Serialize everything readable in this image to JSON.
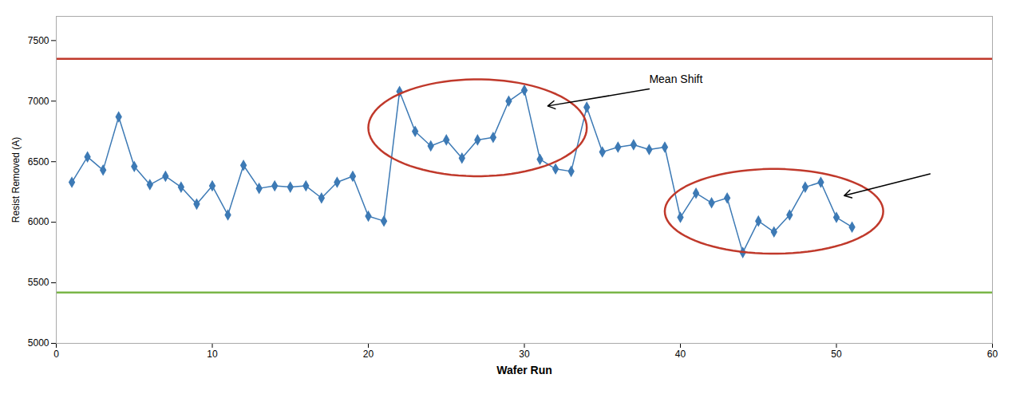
{
  "chart_data": {
    "type": "line",
    "x": [
      1,
      2,
      3,
      4,
      5,
      6,
      7,
      8,
      9,
      10,
      11,
      12,
      13,
      14,
      15,
      16,
      17,
      18,
      19,
      20,
      21,
      22,
      23,
      24,
      25,
      26,
      27,
      28,
      29,
      30,
      31,
      32,
      33,
      34,
      35,
      36,
      37,
      38,
      39,
      40,
      41,
      42,
      43,
      44,
      45,
      46,
      47,
      48,
      49,
      50,
      51
    ],
    "values": [
      6330,
      6540,
      6430,
      6870,
      6460,
      6310,
      6380,
      6290,
      6150,
      6300,
      6060,
      6470,
      6280,
      6300,
      6290,
      6300,
      6200,
      6330,
      6380,
      6050,
      6010,
      7080,
      6750,
      6630,
      6680,
      6530,
      6680,
      6700,
      7000,
      7090,
      6520,
      6440,
      6420,
      6950,
      6580,
      6620,
      6640,
      6600,
      6620,
      6040,
      6240,
      6160,
      6200,
      5750,
      6010,
      5920,
      6060,
      6290,
      6330,
      6040,
      5960
    ],
    "color": "#3d7ab5",
    "marker": "diamond",
    "xlabel": "Wafer Run",
    "ylabel": "Resist Removed (A)",
    "xlim": [
      0,
      60
    ],
    "ylim": [
      5000,
      7700
    ],
    "xticks": [
      0,
      10,
      20,
      30,
      40,
      50,
      60
    ],
    "yticks": [
      5000,
      5500,
      6000,
      6500,
      7000,
      7500
    ],
    "grid": false,
    "reference_lines": [
      {
        "y": 7350,
        "color": "#c0392b"
      },
      {
        "y": 5420,
        "color": "#7ab648"
      }
    ],
    "annotations": [
      {
        "type": "ellipse",
        "center": [
          27,
          6780
        ],
        "width": 14,
        "height": 800,
        "color": "#c0392b"
      },
      {
        "type": "ellipse",
        "center": [
          46,
          6090
        ],
        "width": 14,
        "height": 700,
        "color": "#c0392b"
      },
      {
        "type": "arrow",
        "from": [
          38,
          7100
        ],
        "to": [
          31.5,
          6960
        ],
        "color": "black"
      },
      {
        "type": "arrow",
        "from": [
          56,
          6400
        ],
        "to": [
          50.5,
          6220
        ],
        "color": "black"
      },
      {
        "type": "text",
        "text": "Mean Shift",
        "x": 38,
        "y": 7150,
        "color": "black"
      }
    ]
  }
}
